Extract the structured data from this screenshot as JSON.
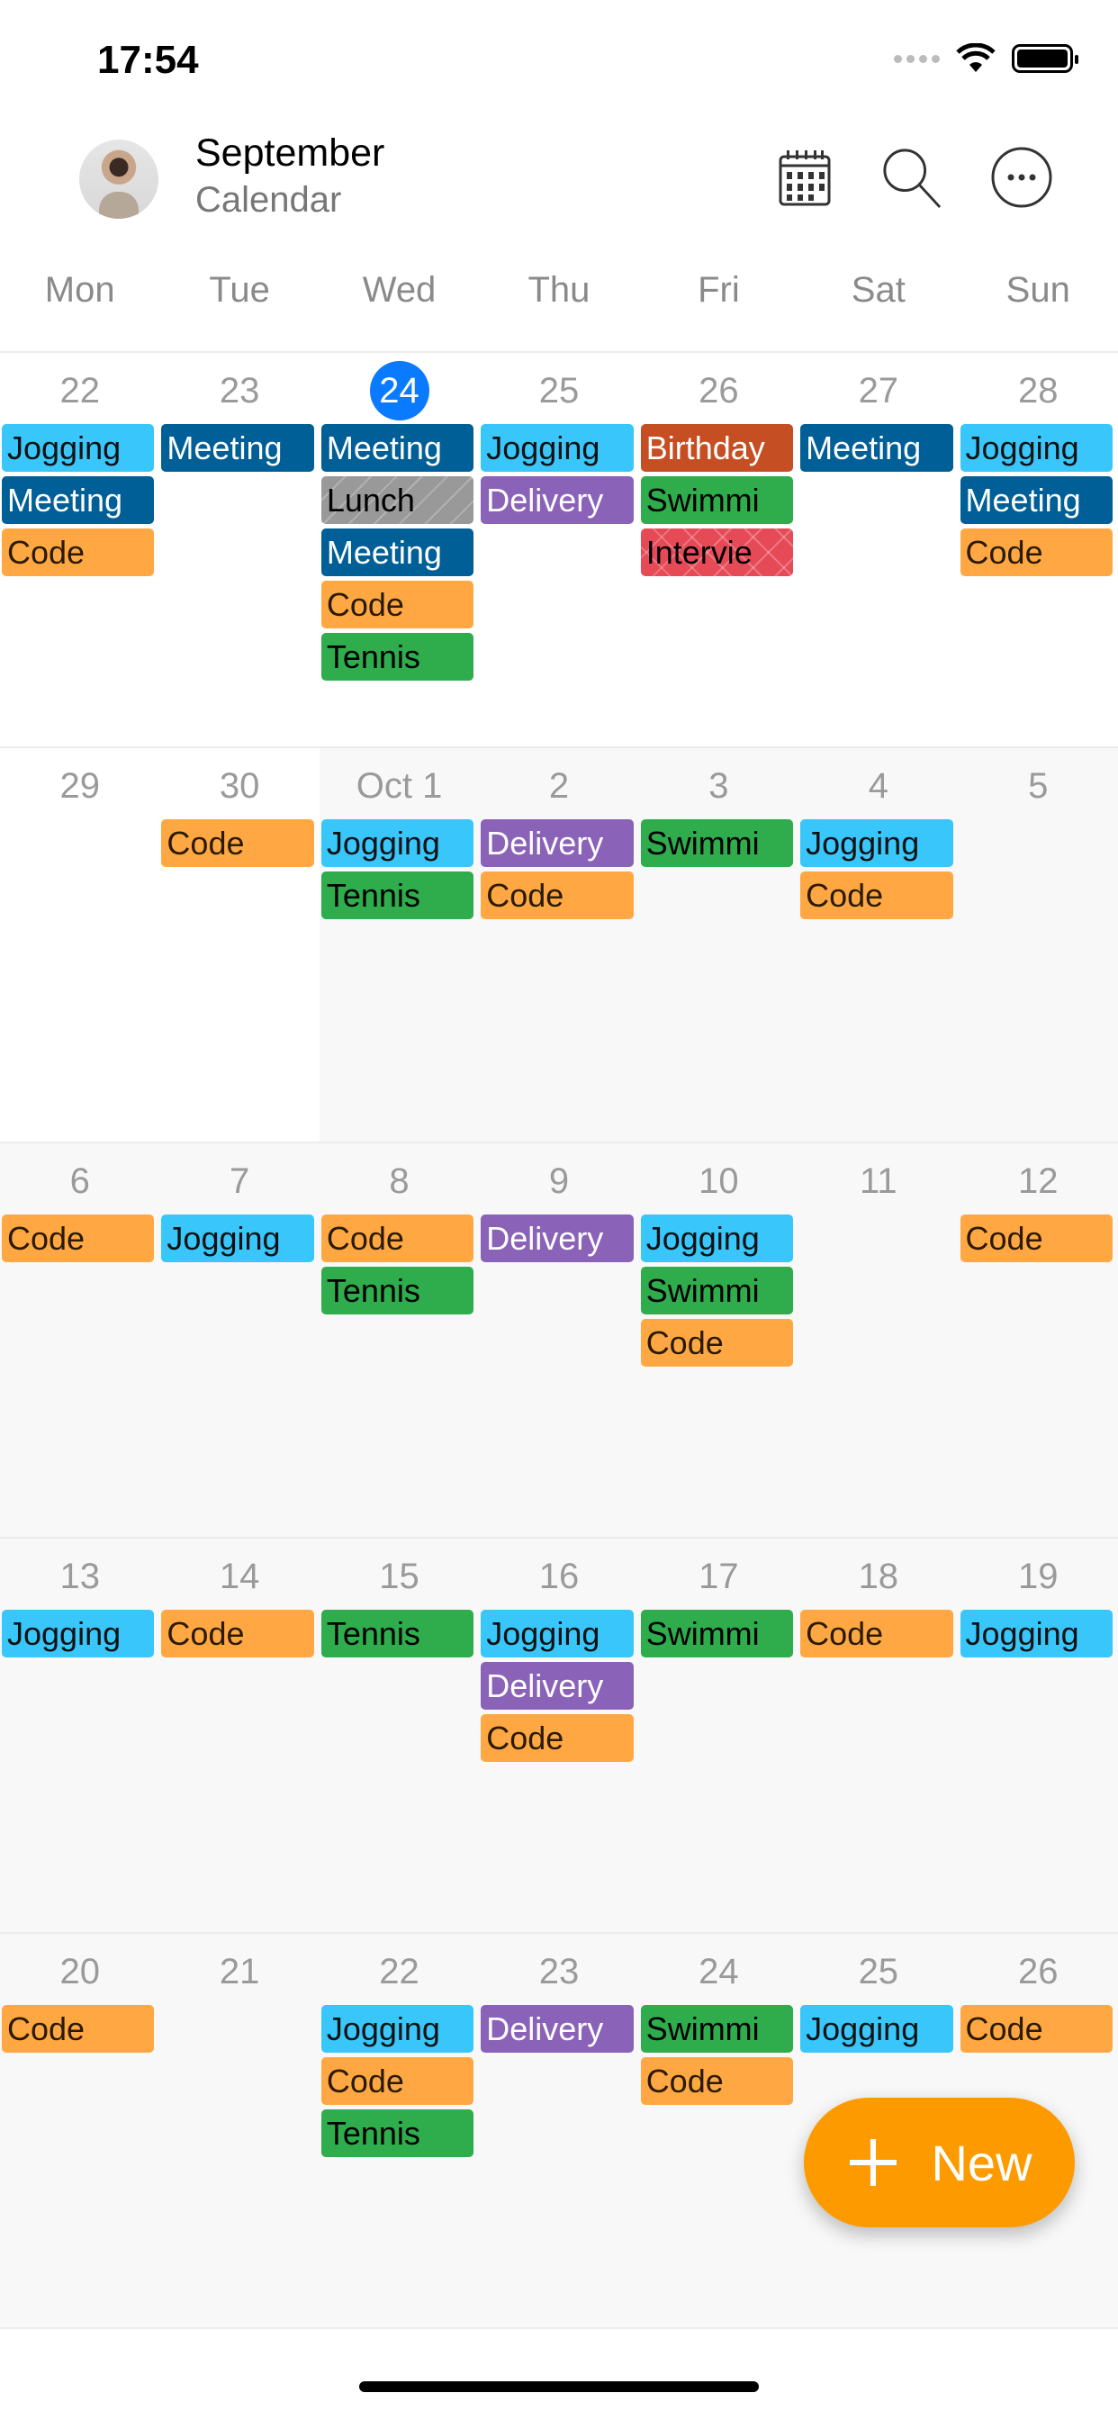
{
  "status": {
    "time": "17:54"
  },
  "header": {
    "title": "September",
    "subtitle": "Calendar",
    "icons": [
      "calendar-grid-icon",
      "search-icon",
      "more-icon"
    ]
  },
  "weekdays": [
    "Mon",
    "Tue",
    "Wed",
    "Thu",
    "Fri",
    "Sat",
    "Sun"
  ],
  "event_styles": {
    "Jogging": {
      "bg": "#38c6fb",
      "fg": "#111"
    },
    "Meeting": {
      "bg": "#005f96",
      "fg": "#fff"
    },
    "Code": {
      "bg": "#ffa843",
      "fg": "#2a1a00"
    },
    "Tennis": {
      "bg": "#2fac4c",
      "fg": "#000"
    },
    "Swimmi": {
      "bg": "#2fac4c",
      "fg": "#000"
    },
    "Delivery": {
      "bg": "#8a63b8",
      "fg": "#fff"
    },
    "Birthday": {
      "bg": "#c54f22",
      "fg": "#fff"
    },
    "Lunch": {
      "bg": "#999999",
      "fg": "#000",
      "pattern": "stripes"
    },
    "Intervie": {
      "bg": "#e64a57",
      "fg": "#000",
      "pattern": "crosshatch"
    }
  },
  "today_color": "#0a7aff",
  "weeks": [
    [
      {
        "num": "22",
        "events": [
          "Jogging",
          "Meeting",
          "Code"
        ]
      },
      {
        "num": "23",
        "events": [
          "Meeting"
        ]
      },
      {
        "num": "24",
        "today": true,
        "events": [
          "Meeting",
          "Lunch",
          "Meeting",
          "Code",
          "Tennis"
        ]
      },
      {
        "num": "25",
        "events": [
          "Jogging",
          "Delivery"
        ]
      },
      {
        "num": "26",
        "events": [
          "Birthday",
          "Swimmi",
          "Intervie"
        ]
      },
      {
        "num": "27",
        "events": [
          "Meeting"
        ]
      },
      {
        "num": "28",
        "events": [
          "Jogging",
          "Meeting",
          "Code"
        ]
      }
    ],
    [
      {
        "num": "29",
        "events": []
      },
      {
        "num": "30",
        "events": [
          "Code"
        ]
      },
      {
        "num": "Oct  1",
        "gray": true,
        "events": [
          "Jogging",
          "Tennis"
        ]
      },
      {
        "num": "2",
        "gray": true,
        "events": [
          "Delivery",
          "Code"
        ]
      },
      {
        "num": "3",
        "gray": true,
        "events": [
          "Swimmi"
        ]
      },
      {
        "num": "4",
        "gray": true,
        "events": [
          "Jogging",
          "Code"
        ]
      },
      {
        "num": "5",
        "gray": true,
        "events": []
      }
    ],
    [
      {
        "num": "6",
        "gray": true,
        "events": [
          "Code"
        ]
      },
      {
        "num": "7",
        "gray": true,
        "events": [
          "Jogging"
        ]
      },
      {
        "num": "8",
        "gray": true,
        "events": [
          "Code",
          "Tennis"
        ]
      },
      {
        "num": "9",
        "gray": true,
        "events": [
          "Delivery"
        ]
      },
      {
        "num": "10",
        "gray": true,
        "events": [
          "Jogging",
          "Swimmi",
          "Code"
        ]
      },
      {
        "num": "11",
        "gray": true,
        "events": []
      },
      {
        "num": "12",
        "gray": true,
        "events": [
          "Code"
        ]
      }
    ],
    [
      {
        "num": "13",
        "gray": true,
        "events": [
          "Jogging"
        ]
      },
      {
        "num": "14",
        "gray": true,
        "events": [
          "Code"
        ]
      },
      {
        "num": "15",
        "gray": true,
        "events": [
          "Tennis"
        ]
      },
      {
        "num": "16",
        "gray": true,
        "events": [
          "Jogging",
          "Delivery",
          "Code"
        ]
      },
      {
        "num": "17",
        "gray": true,
        "events": [
          "Swimmi"
        ]
      },
      {
        "num": "18",
        "gray": true,
        "events": [
          "Code"
        ]
      },
      {
        "num": "19",
        "gray": true,
        "events": [
          "Jogging"
        ]
      }
    ],
    [
      {
        "num": "20",
        "gray": true,
        "events": [
          "Code"
        ]
      },
      {
        "num": "21",
        "gray": true,
        "events": []
      },
      {
        "num": "22",
        "gray": true,
        "events": [
          "Jogging",
          "Code",
          "Tennis"
        ]
      },
      {
        "num": "23",
        "gray": true,
        "events": [
          "Delivery"
        ]
      },
      {
        "num": "24",
        "gray": true,
        "events": [
          "Swimmi",
          "Code"
        ]
      },
      {
        "num": "25",
        "gray": true,
        "events": [
          "Jogging"
        ]
      },
      {
        "num": "26",
        "gray": true,
        "events": [
          "Code"
        ]
      }
    ]
  ],
  "fab": {
    "label": "New",
    "color": "#fd9a00"
  }
}
